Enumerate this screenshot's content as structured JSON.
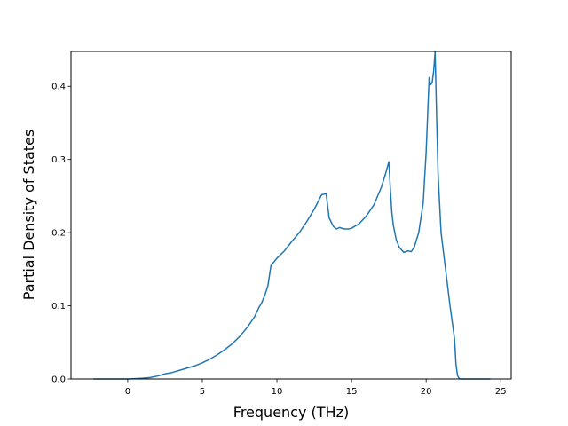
{
  "chart_data": {
    "type": "line",
    "xlabel": "Frequency (THz)",
    "ylabel": "Partial Density of States",
    "xlim": [
      -3.8,
      25.7
    ],
    "ylim": [
      0,
      0.4476
    ],
    "xticks": [
      0,
      5,
      10,
      15,
      20,
      25
    ],
    "xtick_labels": [
      "0",
      "5",
      "10",
      "15",
      "20",
      "25"
    ],
    "yticks": [
      0.0,
      0.1,
      0.2,
      0.3,
      0.4
    ],
    "ytick_labels": [
      "0.0",
      "0.1",
      "0.2",
      "0.3",
      "0.4"
    ],
    "grid": false,
    "line_color": "#1f77b4",
    "series": [
      {
        "x": [
          -2.3,
          -1.0,
          0.0,
          0.5,
          1.0,
          1.5,
          2.0,
          2.5,
          3.0,
          3.5,
          4.0,
          4.5,
          5.0,
          5.5,
          6.0,
          6.5,
          7.0,
          7.5,
          8.0,
          8.5,
          8.8,
          9.0,
          9.2,
          9.4,
          9.6,
          10.0,
          10.5,
          11.0,
          11.5,
          12.0,
          12.5,
          13.0,
          13.3,
          13.5,
          13.8,
          14.0,
          14.2,
          14.5,
          14.8,
          15.0,
          15.5,
          16.0,
          16.5,
          17.0,
          17.3,
          17.5,
          17.6,
          17.7,
          17.8,
          18.0,
          18.2,
          18.5,
          18.8,
          19.0,
          19.2,
          19.5,
          19.8,
          20.0,
          20.2,
          20.3,
          20.4,
          20.5,
          20.6,
          20.7,
          20.8,
          21.0,
          21.3,
          21.6,
          21.9,
          22.0,
          22.1,
          22.2,
          22.3,
          22.5,
          24.3
        ],
        "y": [
          0.0,
          0.0,
          0.0,
          0.0005,
          0.001,
          0.002,
          0.004,
          0.007,
          0.009,
          0.012,
          0.015,
          0.018,
          0.022,
          0.027,
          0.033,
          0.04,
          0.048,
          0.058,
          0.07,
          0.085,
          0.098,
          0.105,
          0.115,
          0.128,
          0.155,
          0.165,
          0.175,
          0.188,
          0.2,
          0.215,
          0.232,
          0.252,
          0.253,
          0.22,
          0.208,
          0.205,
          0.207,
          0.205,
          0.205,
          0.206,
          0.212,
          0.223,
          0.238,
          0.262,
          0.282,
          0.297,
          0.26,
          0.228,
          0.21,
          0.19,
          0.18,
          0.173,
          0.175,
          0.174,
          0.18,
          0.2,
          0.24,
          0.31,
          0.412,
          0.402,
          0.405,
          0.42,
          0.447,
          0.36,
          0.28,
          0.2,
          0.15,
          0.1,
          0.055,
          0.02,
          0.005,
          0.001,
          0.0,
          0.0,
          0.0
        ]
      }
    ]
  }
}
